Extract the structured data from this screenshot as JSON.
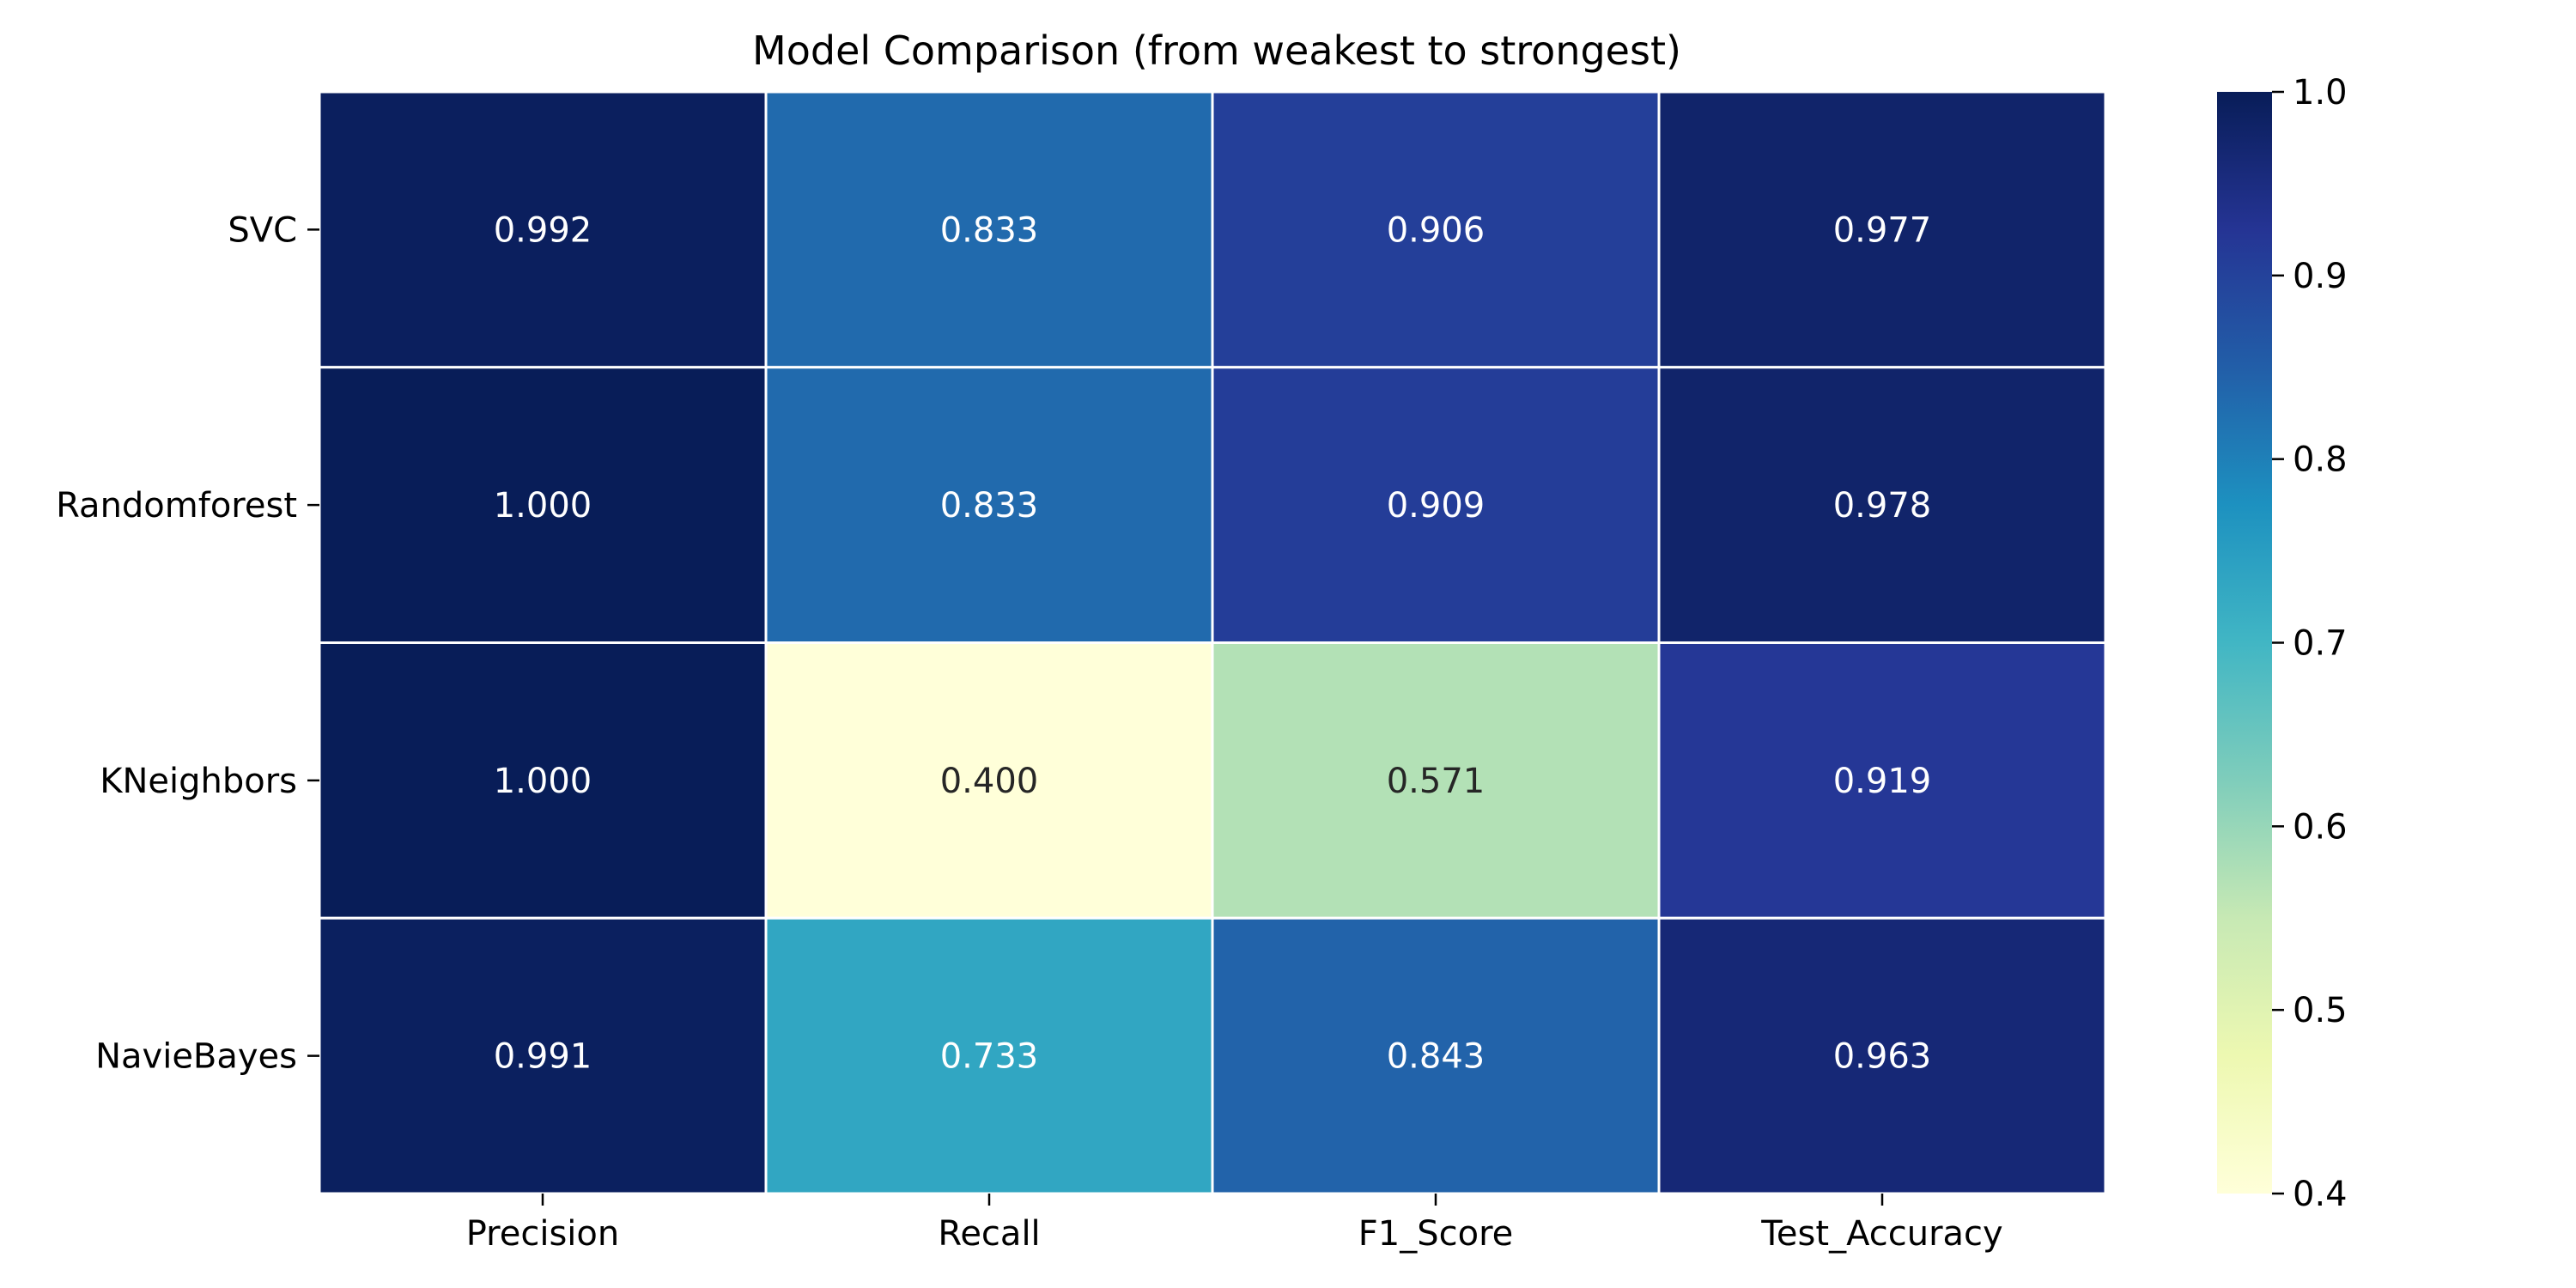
{
  "chart_data": {
    "type": "heatmap",
    "title": "Model Comparison (from weakest to strongest)",
    "xlabel": "",
    "ylabel": "",
    "columns": [
      "Precision",
      "Recall",
      "F1_Score",
      "Test_Accuracy"
    ],
    "rows": [
      "SVC",
      "Randomforest",
      "KNeighbors",
      "NavieBayes"
    ],
    "values": [
      [
        0.992,
        0.833,
        0.906,
        0.977
      ],
      [
        1.0,
        0.833,
        0.909,
        0.978
      ],
      [
        1.0,
        0.4,
        0.571,
        0.919
      ],
      [
        0.991,
        0.733,
        0.843,
        0.963
      ]
    ],
    "cell_labels": [
      [
        "0.992",
        "0.833",
        "0.906",
        "0.977"
      ],
      [
        "1.000",
        "0.833",
        "0.909",
        "0.978"
      ],
      [
        "1.000",
        "0.400",
        "0.571",
        "0.919"
      ],
      [
        "0.991",
        "0.733",
        "0.843",
        "0.963"
      ]
    ],
    "colorbar": {
      "range": [
        0.4,
        1.0
      ],
      "ticks": [
        0.4,
        0.5,
        0.6,
        0.7,
        0.8,
        0.9,
        1.0
      ],
      "tick_labels": [
        "0.4",
        "0.5",
        "0.6",
        "0.7",
        "0.8",
        "0.9",
        "1.0"
      ],
      "colormap": "YlGnBu",
      "colormap_stops": [
        "#ffffd9",
        "#edf8b1",
        "#c7e9b4",
        "#7fcdbb",
        "#41b6c4",
        "#1d91c0",
        "#225ea8",
        "#253494",
        "#081d58"
      ]
    },
    "grid": false,
    "legend": "colorbar-right"
  }
}
